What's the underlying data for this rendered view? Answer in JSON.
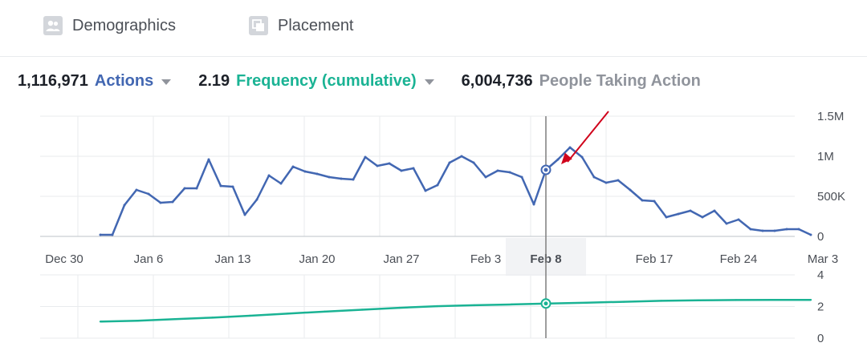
{
  "tabs": [
    {
      "label": "Demographics",
      "icon": "people-icon"
    },
    {
      "label": "Placement",
      "icon": "placement-icon"
    }
  ],
  "metrics": {
    "actions": {
      "value": "1,116,971",
      "label": "Actions"
    },
    "frequency": {
      "value": "2.19",
      "label": "Frequency (cumulative)"
    },
    "people": {
      "value": "6,004,736",
      "label": "People Taking Action"
    }
  },
  "colors": {
    "actions": "#4267b2",
    "frequency": "#1ab394",
    "annotation_arrow": "#d0021b",
    "grid": "#e9ebee"
  },
  "chart_data": [
    {
      "type": "line",
      "series": [
        {
          "name": "Actions",
          "values": [
            20000,
            20000,
            390000,
            580000,
            530000,
            420000,
            430000,
            600000,
            600000,
            960000,
            630000,
            620000,
            270000,
            460000,
            760000,
            660000,
            870000,
            810000,
            780000,
            740000,
            720000,
            710000,
            990000,
            880000,
            910000,
            820000,
            850000,
            570000,
            640000,
            920000,
            1000000,
            920000,
            740000,
            820000,
            800000,
            740000,
            400000,
            830000,
            960000,
            1110000,
            990000,
            740000,
            670000,
            700000,
            580000,
            450000,
            440000,
            240000,
            280000,
            320000,
            240000,
            320000,
            160000,
            210000,
            90000,
            70000,
            70000,
            90000,
            90000,
            20000
          ]
        }
      ],
      "x": [
        "Jan 2",
        "Jan 3",
        "Jan 4",
        "Jan 5",
        "Jan 6",
        "Jan 7",
        "Jan 8",
        "Jan 9",
        "Jan 10",
        "Jan 11",
        "Jan 12",
        "Jan 13",
        "Jan 14",
        "Jan 15",
        "Jan 16",
        "Jan 17",
        "Jan 18",
        "Jan 19",
        "Jan 20",
        "Jan 21",
        "Jan 22",
        "Jan 23",
        "Jan 24",
        "Jan 25",
        "Jan 26",
        "Jan 27",
        "Jan 28",
        "Jan 29",
        "Jan 30",
        "Jan 31",
        "Feb 1",
        "Feb 2",
        "Feb 3",
        "Feb 4",
        "Feb 5",
        "Feb 6",
        "Feb 7",
        "Feb 8",
        "Feb 9",
        "Feb 10",
        "Feb 11",
        "Feb 12",
        "Feb 13",
        "Feb 14",
        "Feb 15",
        "Feb 16",
        "Feb 17",
        "Feb 18",
        "Feb 19",
        "Feb 20",
        "Feb 21",
        "Feb 22",
        "Feb 23",
        "Feb 24",
        "Feb 25",
        "Feb 26",
        "Feb 27",
        "Feb 28",
        "Mar 1",
        "Mar 2"
      ],
      "x_ticks": [
        "Dec 30",
        "Jan 6",
        "Jan 13",
        "Jan 20",
        "Jan 27",
        "Feb 3",
        "Feb 8",
        "Feb 17",
        "Feb 24",
        "Mar 3"
      ],
      "highlight_x": "Feb 8",
      "y_ticks": [
        "0",
        "500K",
        "1M",
        "1.5M"
      ],
      "ylim": [
        0,
        1500000
      ],
      "grid": true
    },
    {
      "type": "line",
      "series": [
        {
          "name": "Frequency (cumulative)",
          "values": [
            1.05,
            1.1,
            1.2,
            1.3,
            1.42,
            1.55,
            1.68,
            1.8,
            1.92,
            2.02,
            2.08,
            2.13,
            2.19,
            2.24,
            2.3,
            2.36,
            2.39,
            2.41,
            2.42,
            2.42
          ]
        }
      ],
      "x_start": "Jan 2",
      "x_end": "Mar 2",
      "y_ticks": [
        "0",
        "2",
        "4"
      ],
      "ylim": [
        0,
        4
      ],
      "grid": true
    }
  ]
}
